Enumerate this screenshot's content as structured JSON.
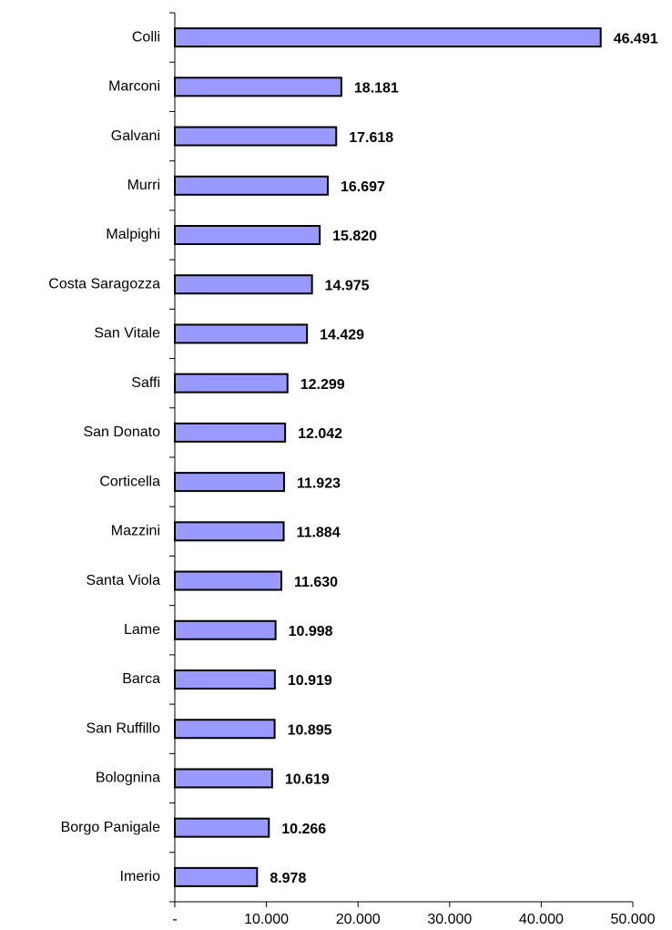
{
  "chart_data": {
    "type": "bar",
    "orientation": "horizontal",
    "categories": [
      "Colli",
      "Marconi",
      "Galvani",
      "Murri",
      "Malpighi",
      "Costa Saragozza",
      "San Vitale",
      "Saffi",
      "San Donato",
      "Corticella",
      "Mazzini",
      "Santa Viola",
      "Lame",
      "Barca",
      "San Ruffillo",
      "Bolognina",
      "Borgo Panigale",
      "Imerio"
    ],
    "values": [
      46491,
      18181,
      17618,
      16697,
      15820,
      14975,
      14429,
      12299,
      12042,
      11923,
      11884,
      11630,
      10998,
      10919,
      10895,
      10619,
      10266,
      8978
    ],
    "value_labels": [
      "46.491",
      "18.181",
      "17.618",
      "16.697",
      "15.820",
      "14.975",
      "14.429",
      "12.299",
      "12.042",
      "11.923",
      "11.884",
      "11.630",
      "10.998",
      "10.919",
      "10.895",
      "10.619",
      "10.266",
      "8.978"
    ],
    "color": "#9999ff",
    "xlim": [
      0,
      50000
    ],
    "xticks": [
      {
        "value": 0,
        "label": "-"
      },
      {
        "value": 10000,
        "label": "10.000"
      },
      {
        "value": 20000,
        "label": "20.000"
      },
      {
        "value": 30000,
        "label": "30.000"
      },
      {
        "value": 40000,
        "label": "40.000"
      },
      {
        "value": 50000,
        "label": "50.000"
      }
    ],
    "grid": false
  }
}
